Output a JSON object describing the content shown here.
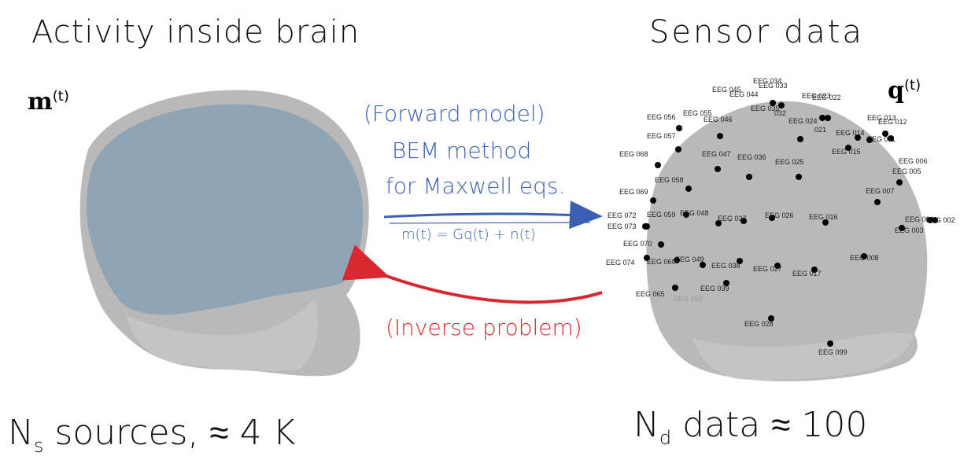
{
  "titles": {
    "left": "Activity inside brain",
    "right": "Sensor data"
  },
  "variables": {
    "m": "m",
    "m_sup": "(t)",
    "q": "q",
    "q_sup": "(t)"
  },
  "forward": {
    "line1": "(Forward model)",
    "line2": "BEM method",
    "line3": "for Maxwell eqs.",
    "equation": "m(t) = Gq(t) + n(t)"
  },
  "inverse": {
    "label": "(Inverse problem)"
  },
  "captions": {
    "left_N": "N",
    "left_sub": "s",
    "left_rest": " sources, ≈ 4 K",
    "right_N": "N",
    "right_sub": "d",
    "right_rest": " data ≈ 100"
  },
  "colors": {
    "forward": "#3a5fb3",
    "inverse": "#d8272e",
    "head": "#b9b9b9",
    "brain": "#8fa5b5"
  },
  "electrodes": [
    {
      "label": "EEG 034",
      "dot": false,
      "faint": false
    },
    {
      "label": "EEG 033",
      "dot": true,
      "faint": false
    },
    {
      "label": "EEG 045",
      "dot": false,
      "faint": false
    },
    {
      "label": "EEG 044",
      "dot": false,
      "faint": false
    },
    {
      "label": "EEG 023",
      "dot": true,
      "faint": false
    },
    {
      "label": "EEG 022",
      "dot": true,
      "faint": false
    },
    {
      "label": "EEG 056",
      "dot": false,
      "faint": false
    },
    {
      "label": "EEG 055",
      "dot": true,
      "faint": false
    },
    {
      "label": "EEG 046",
      "dot": true,
      "faint": false
    },
    {
      "label": "EEG 035",
      "dot": true,
      "faint": false
    },
    {
      "label": "032",
      "dot": false,
      "faint": false
    },
    {
      "label": "EEG 024",
      "dot": true,
      "faint": false
    },
    {
      "label": "EEG 013",
      "dot": true,
      "faint": false
    },
    {
      "label": "EEG 012",
      "dot": true,
      "faint": false
    },
    {
      "label": "021",
      "dot": false,
      "faint": false
    },
    {
      "label": "EEG 014",
      "dot": true,
      "faint": false
    },
    {
      "label": "EEG 011",
      "dot": true,
      "faint": false
    },
    {
      "label": "EEG 057",
      "dot": true,
      "faint": false
    },
    {
      "label": "EEG 015",
      "dot": true,
      "faint": false
    },
    {
      "label": "EEG 068",
      "dot": true,
      "faint": false
    },
    {
      "label": "EEG 047",
      "dot": true,
      "faint": false
    },
    {
      "label": "EEG 036",
      "dot": true,
      "faint": false
    },
    {
      "label": "EEG 025",
      "dot": true,
      "faint": false
    },
    {
      "label": "EEG 006",
      "dot": false,
      "faint": false
    },
    {
      "label": "EEG 005",
      "dot": true,
      "faint": false
    },
    {
      "label": "EEG 058",
      "dot": true,
      "faint": false
    },
    {
      "label": "EEG 069",
      "dot": true,
      "faint": false
    },
    {
      "label": "EEG 007",
      "dot": true,
      "faint": false
    },
    {
      "label": "EEG 072",
      "dot": true,
      "faint": false
    },
    {
      "label": "EEG 059",
      "dot": true,
      "faint": false
    },
    {
      "label": "EEG 048",
      "dot": true,
      "faint": false
    },
    {
      "label": "EEG 037",
      "dot": true,
      "faint": false
    },
    {
      "label": "EEG 026",
      "dot": true,
      "faint": false
    },
    {
      "label": "EEG 016",
      "dot": true,
      "faint": false
    },
    {
      "label": "EEG 001",
      "dot": true,
      "faint": false
    },
    {
      "label": "EEG 002",
      "dot": true,
      "faint": false
    },
    {
      "label": "EEG 073",
      "dot": true,
      "faint": false
    },
    {
      "label": "EEG 003",
      "dot": true,
      "faint": false
    },
    {
      "label": "EEG 070",
      "dot": true,
      "faint": false
    },
    {
      "label": "EEG 074",
      "dot": true,
      "faint": false
    },
    {
      "label": "EEG 060",
      "dot": true,
      "faint": false
    },
    {
      "label": "EEG 049",
      "dot": true,
      "faint": false
    },
    {
      "label": "EEG 038",
      "dot": true,
      "faint": false
    },
    {
      "label": "EEG 027",
      "dot": true,
      "faint": false
    },
    {
      "label": "EEG 017",
      "dot": true,
      "faint": false
    },
    {
      "label": "EEG 008",
      "dot": true,
      "faint": false
    },
    {
      "label": "EEG 039",
      "dot": true,
      "faint": false
    },
    {
      "label": "EEG 065",
      "dot": true,
      "faint": false
    },
    {
      "label": "EEG 050",
      "dot": false,
      "faint": true
    },
    {
      "label": "EEG 028",
      "dot": true,
      "faint": false
    },
    {
      "label": "EEG 099",
      "dot": true,
      "faint": false
    }
  ]
}
